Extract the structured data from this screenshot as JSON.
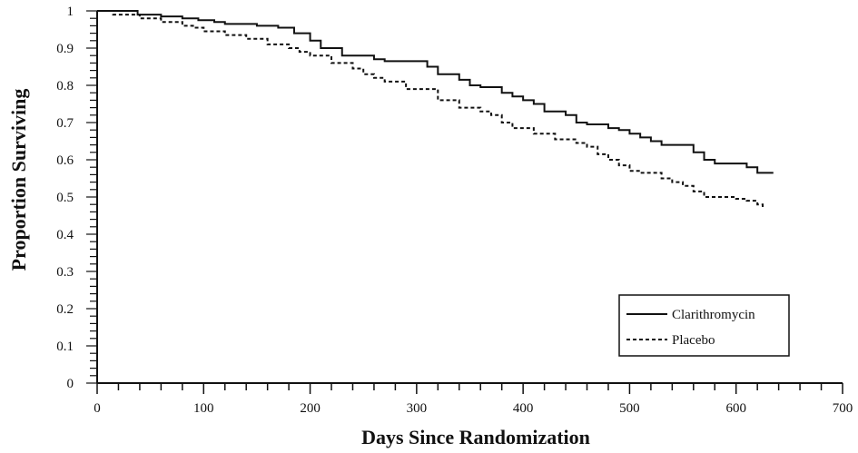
{
  "chart_data": {
    "type": "line",
    "title": "",
    "xlabel": "Days Since Randomization",
    "ylabel": "Proportion Surviving",
    "xlim": [
      0,
      700
    ],
    "ylim": [
      0,
      1
    ],
    "xticks": [
      0,
      100,
      200,
      300,
      400,
      500,
      600,
      700
    ],
    "xtick_labels": [
      "0",
      "100",
      "200",
      "300",
      "400",
      "500",
      "600",
      "700"
    ],
    "yticks": [
      0,
      0.1,
      0.2,
      0.3,
      0.4,
      0.5,
      0.6,
      0.7,
      0.8,
      0.9,
      1
    ],
    "ytick_labels": [
      "0",
      "0.1",
      "0.2",
      "0.3",
      "0.4",
      "0.5",
      "0.6",
      "0.7",
      "0.8",
      "0.9",
      "1"
    ],
    "grid": false,
    "legend_position": "bottom-right",
    "series": [
      {
        "name": "Clarithromycin",
        "line_style": "solid",
        "color": "#111111",
        "step": true,
        "x": [
          0,
          38,
          60,
          80,
          95,
          110,
          120,
          150,
          170,
          185,
          200,
          210,
          230,
          260,
          270,
          310,
          320,
          340,
          350,
          360,
          380,
          390,
          400,
          410,
          420,
          440,
          450,
          460,
          480,
          490,
          500,
          510,
          520,
          530,
          560,
          570,
          580,
          610,
          620,
          635
        ],
        "y": [
          1.0,
          0.99,
          0.985,
          0.98,
          0.975,
          0.97,
          0.965,
          0.96,
          0.955,
          0.94,
          0.92,
          0.9,
          0.88,
          0.87,
          0.865,
          0.85,
          0.83,
          0.815,
          0.8,
          0.795,
          0.78,
          0.77,
          0.76,
          0.75,
          0.73,
          0.72,
          0.7,
          0.695,
          0.685,
          0.68,
          0.67,
          0.66,
          0.65,
          0.64,
          0.62,
          0.6,
          0.59,
          0.58,
          0.565,
          0.565
        ]
      },
      {
        "name": "Placebo",
        "line_style": "dashed",
        "color": "#111111",
        "step": true,
        "x": [
          0,
          15,
          40,
          60,
          80,
          90,
          100,
          120,
          140,
          160,
          180,
          190,
          200,
          220,
          240,
          250,
          260,
          270,
          290,
          320,
          340,
          360,
          370,
          380,
          390,
          410,
          430,
          450,
          460,
          470,
          480,
          490,
          500,
          510,
          530,
          540,
          550,
          560,
          570,
          600,
          610,
          620,
          625
        ],
        "y": [
          1.0,
          0.99,
          0.98,
          0.97,
          0.96,
          0.955,
          0.945,
          0.935,
          0.925,
          0.91,
          0.9,
          0.89,
          0.88,
          0.86,
          0.845,
          0.83,
          0.82,
          0.81,
          0.79,
          0.76,
          0.74,
          0.73,
          0.72,
          0.7,
          0.685,
          0.67,
          0.655,
          0.645,
          0.635,
          0.615,
          0.6,
          0.585,
          0.57,
          0.565,
          0.55,
          0.54,
          0.53,
          0.515,
          0.5,
          0.495,
          0.49,
          0.48,
          0.47
        ]
      }
    ]
  }
}
